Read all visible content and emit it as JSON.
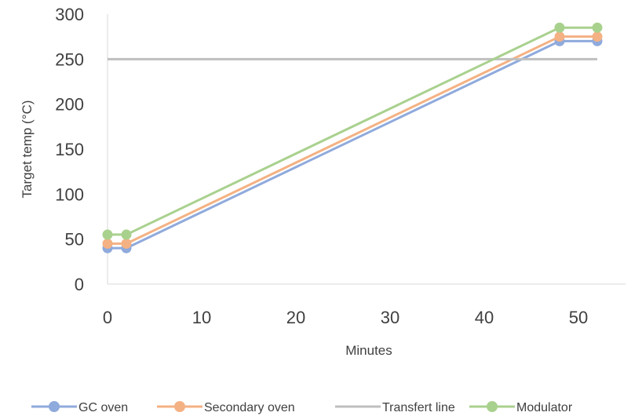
{
  "chart_data": {
    "type": "line",
    "title": "",
    "xlabel": "Minutes",
    "ylabel": "Target temp (°C)",
    "xlim": [
      0,
      55
    ],
    "ylim": [
      0,
      300
    ],
    "x_ticks": [
      0,
      10,
      20,
      30,
      40,
      50
    ],
    "y_ticks": [
      0,
      50,
      100,
      150,
      200,
      250,
      300
    ],
    "grid": false,
    "legend_position": "bottom",
    "series": [
      {
        "name": "GC oven",
        "color": "#8faadc",
        "markers": true,
        "points": [
          [
            0,
            40
          ],
          [
            2,
            40
          ],
          [
            48,
            270
          ],
          [
            52,
            270
          ]
        ]
      },
      {
        "name": "Secondary oven",
        "color": "#f4b183",
        "markers": true,
        "points": [
          [
            0,
            45
          ],
          [
            2,
            45
          ],
          [
            48,
            275
          ],
          [
            52,
            275
          ]
        ]
      },
      {
        "name": "Transfert line",
        "color": "#bfbfbf",
        "markers": false,
        "points": [
          [
            0,
            250
          ],
          [
            52,
            250
          ]
        ]
      },
      {
        "name": "Modulator",
        "color": "#a9d18e",
        "markers": true,
        "points": [
          [
            0,
            55
          ],
          [
            2,
            55
          ],
          [
            48,
            285
          ],
          [
            52,
            285
          ]
        ]
      }
    ]
  }
}
